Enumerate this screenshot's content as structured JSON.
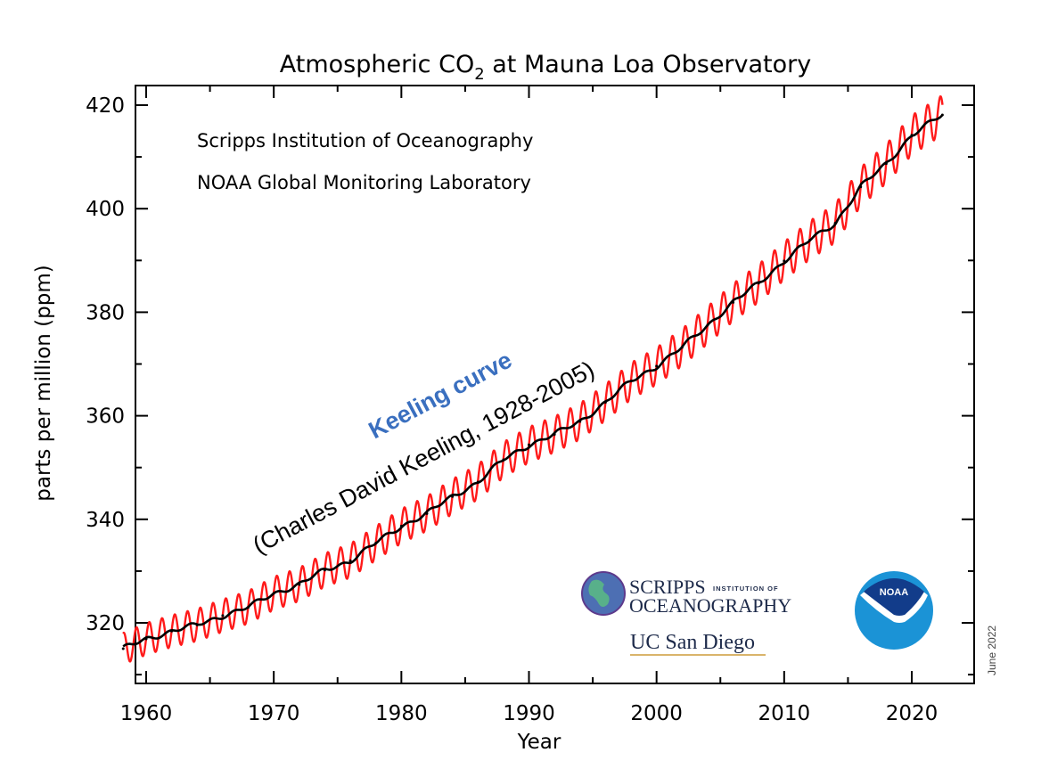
{
  "chart_data": {
    "type": "line",
    "title": "Atmospheric CO",
    "title_subscript": "2",
    "title_suffix": " at Mauna Loa Observatory",
    "xlabel": "Year",
    "ylabel": "parts per million (ppm)",
    "xlim": [
      1957.1,
      2023.9
    ],
    "ylim": [
      310.5,
      416.4
    ],
    "y_ylim_note": "axis spans approx 305 to 424 ppm",
    "yrange_visible": [
      305.2,
      424.0
    ],
    "x_ticks": [
      1960,
      1970,
      1980,
      1990,
      2000,
      2010,
      2020
    ],
    "x_tick_labels": [
      "1960",
      "1970",
      "1980",
      "1990",
      "2000",
      "2010",
      "2020"
    ],
    "x_minor_ticks": [
      1965,
      1975,
      1985,
      1995,
      2005,
      2015
    ],
    "y_ticks": [
      320,
      340,
      360,
      380,
      400,
      420
    ],
    "y_tick_labels": [
      "320",
      "340",
      "360",
      "380",
      "400",
      "420"
    ],
    "y_minor_ticks": [
      310,
      330,
      350,
      370,
      390,
      410
    ],
    "grid": false,
    "colors": {
      "monthly": "#ff1a1a",
      "trend": "#000000",
      "keeling_title": "#3a6fbf"
    },
    "series": [
      {
        "name": "Monthly mean CO2 (seasonal cycle)",
        "color": "#ff1a1a",
        "seasonal_amplitude_ppm": 3.2,
        "note": "oscillates around trend with ~1 cycle per year"
      },
      {
        "name": "Seasonally corrected trend",
        "color": "#000000",
        "x": [
          1958.2,
          1960,
          1962,
          1964,
          1966,
          1968,
          1970,
          1972,
          1974,
          1976,
          1978,
          1980,
          1982,
          1984,
          1986,
          1988,
          1990,
          1992,
          1994,
          1996,
          1998,
          2000,
          2002,
          2004,
          2006,
          2008,
          2010,
          2012,
          2014,
          2016,
          2018,
          2020,
          2022.4
        ],
        "values": [
          315.0,
          316.9,
          318.4,
          319.6,
          321.4,
          323.0,
          325.7,
          327.4,
          330.2,
          332.0,
          335.4,
          338.7,
          341.1,
          344.4,
          347.2,
          351.5,
          354.4,
          356.4,
          358.9,
          362.6,
          366.7,
          369.6,
          373.2,
          377.5,
          381.9,
          385.6,
          389.9,
          393.9,
          397.2,
          404.2,
          408.7,
          414.2,
          418.1
        ]
      }
    ],
    "annotations": {
      "institution_1": "Scripps Institution of Oceanography",
      "institution_2": "NOAA Global Monitoring Laboratory",
      "keeling_title": "Keeling curve",
      "keeling_subtitle": "(Charles David Keeling, 1928-2005)",
      "date": "June 2022"
    },
    "logos": {
      "scripps_line1": "SCRIPPS",
      "scripps_line1_small": "INSTITUTION OF",
      "scripps_line2": "OCEANOGRAPHY",
      "ucsd": "UC San Diego",
      "noaa": "NOAA"
    }
  }
}
